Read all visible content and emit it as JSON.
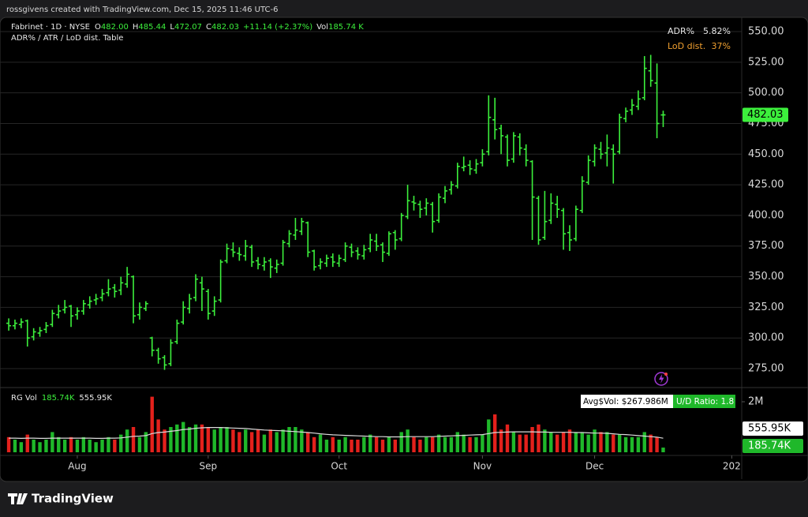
{
  "header": {
    "text": "rossgivens created with TradingView.com, Dec 15, 2025 11:46 UTC-6"
  },
  "footer": {
    "brand": "TradingView"
  },
  "chart_data": [
    {
      "type": "ohlc",
      "title": "Fabrinet · 1D · NYSE",
      "ohlc_legend": [
        {
          "label": "O",
          "value": "482.00"
        },
        {
          "label": "H",
          "value": "485.44"
        },
        {
          "label": "L",
          "value": "472.07"
        },
        {
          "label": "C",
          "value": "482.03"
        }
      ],
      "change": "+11.14 (+2.37%)",
      "volume_legend": {
        "label": "Vol",
        "value": "185.74 K"
      },
      "indicator_title": "ADR% / ATR / LoD dist. Table",
      "table": {
        "rows": [
          [
            "ADR%",
            "5.82%"
          ],
          [
            "LoD dist.",
            "37%"
          ]
        ]
      },
      "color": "#3cf03c",
      "open": [
        312,
        310,
        311,
        314,
        301,
        304,
        307,
        311,
        319,
        323,
        326,
        319,
        322,
        327,
        331,
        333,
        337,
        341,
        339,
        344,
        350,
        319,
        324,
        300,
        290,
        284,
        279,
        297,
        313,
        324,
        333,
        345,
        338,
        322,
        331,
        363,
        372,
        369,
        367,
        374,
        363,
        359,
        363,
        357,
        361,
        377,
        384,
        387,
        394,
        371,
        359,
        361,
        366,
        361,
        364,
        374,
        371,
        367,
        373,
        379,
        376,
        369,
        386,
        381,
        399,
        411,
        409,
        406,
        409,
        396,
        414,
        421,
        424,
        439,
        441,
        437,
        443,
        452,
        478,
        471,
        464,
        446,
        464,
        454,
        444,
        414,
        382,
        396,
        409,
        404,
        386,
        381,
        404,
        427,
        444,
        454,
        451,
        454,
        452,
        479,
        486,
        489,
        496,
        518,
        508,
        482
      ],
      "high": [
        316,
        315,
        316,
        315,
        308,
        309,
        313,
        323,
        327,
        331,
        327,
        325,
        331,
        334,
        336,
        340,
        348,
        344,
        350,
        358,
        351,
        329,
        330,
        301,
        292,
        286,
        299,
        315,
        330,
        336,
        352,
        350,
        340,
        334,
        364,
        377,
        378,
        374,
        380,
        376,
        366,
        366,
        365,
        364,
        380,
        388,
        398,
        398,
        395,
        372,
        365,
        368,
        369,
        368,
        378,
        377,
        374,
        376,
        385,
        385,
        378,
        387,
        388,
        402,
        425,
        416,
        412,
        414,
        411,
        418,
        424,
        428,
        443,
        448,
        445,
        446,
        454,
        498,
        496,
        474,
        466,
        468,
        467,
        458,
        445,
        416,
        420,
        418,
        416,
        406,
        392,
        408,
        432,
        449,
        458,
        460,
        466,
        458,
        483,
        488,
        495,
        502,
        530,
        531,
        524,
        485.44
      ],
      "low": [
        306,
        307,
        308,
        293,
        298,
        301,
        304,
        309,
        316,
        320,
        309,
        315,
        319,
        324,
        327,
        330,
        334,
        333,
        335,
        341,
        312,
        315,
        322,
        285,
        279,
        274,
        277,
        295,
        311,
        320,
        330,
        322,
        315,
        318,
        329,
        361,
        366,
        363,
        363,
        358,
        356,
        355,
        349,
        353,
        359,
        374,
        380,
        384,
        366,
        355,
        356,
        358,
        358,
        358,
        362,
        366,
        364,
        364,
        370,
        371,
        362,
        367,
        372,
        379,
        397,
        404,
        398,
        400,
        386,
        394,
        410,
        417,
        422,
        436,
        433,
        434,
        440,
        449,
        462,
        450,
        440,
        443,
        449,
        440,
        380,
        376,
        380,
        393,
        398,
        372,
        371,
        379,
        402,
        425,
        440,
        446,
        440,
        426,
        450,
        476,
        482,
        486,
        494,
        505,
        463,
        472.07
      ],
      "close": [
        310,
        312,
        313,
        300,
        305,
        306,
        310,
        320,
        322,
        325,
        318,
        322,
        328,
        330,
        332,
        336,
        340,
        338,
        345,
        352,
        318,
        325,
        328,
        290,
        283,
        278,
        296,
        312,
        325,
        332,
        348,
        340,
        320,
        330,
        362,
        373,
        370,
        368,
        375,
        362,
        360,
        362,
        358,
        360,
        378,
        385,
        388,
        395,
        370,
        358,
        362,
        365,
        362,
        365,
        375,
        370,
        368,
        372,
        380,
        375,
        370,
        385,
        380,
        400,
        412,
        410,
        405,
        410,
        395,
        415,
        420,
        425,
        440,
        440,
        438,
        442,
        450,
        480,
        470,
        465,
        445,
        465,
        455,
        445,
        415,
        380,
        395,
        410,
        405,
        385,
        380,
        405,
        428,
        445,
        455,
        450,
        455,
        450,
        480,
        485,
        490,
        495,
        520,
        510,
        475,
        482.03
      ],
      "xlim": [
        -1.4,
        117.6
      ],
      "xticks": [
        {
          "value": 11,
          "label": "Aug"
        },
        {
          "value": 32,
          "label": "Sep"
        },
        {
          "value": 53,
          "label": "Oct"
        },
        {
          "value": 76,
          "label": "Nov"
        },
        {
          "value": 94,
          "label": "Dec"
        },
        {
          "value": 116,
          "label": "202"
        }
      ],
      "ylim": [
        260.2,
        561.6
      ],
      "yticks": [
        {
          "value": 275,
          "label": "275.00"
        },
        {
          "value": 300,
          "label": "300.00"
        },
        {
          "value": 325,
          "label": "325.00"
        },
        {
          "value": 350,
          "label": "350.00"
        },
        {
          "value": 375,
          "label": "375.00"
        },
        {
          "value": 400,
          "label": "400.00"
        },
        {
          "value": 425,
          "label": "425.00"
        },
        {
          "value": 450,
          "label": "450.00"
        },
        {
          "value": 475,
          "label": "475.00"
        },
        {
          "value": 500,
          "label": "500.00"
        },
        {
          "value": 525,
          "label": "525.00"
        },
        {
          "value": 550,
          "label": "550.00"
        }
      ],
      "grid": true
    },
    {
      "type": "volume",
      "title": "RG Vol",
      "volume_label": "185.74K",
      "ma_label": "555.95K",
      "annotation": {
        "avg": "Avg$Vol: $267.986M",
        "ratio": "U/D Ratio: 1.8"
      },
      "up_color": "#1fb82a",
      "down_color": "#e3211c",
      "ma_color": "#dcdcdc",
      "values": [
        0.6,
        0.5,
        0.4,
        0.7,
        0.5,
        0.4,
        0.5,
        0.8,
        0.6,
        0.5,
        0.6,
        0.5,
        0.6,
        0.5,
        0.4,
        0.5,
        0.6,
        0.5,
        0.7,
        0.9,
        1.0,
        0.6,
        0.8,
        2.2,
        1.3,
        0.9,
        1.0,
        1.1,
        1.2,
        1.0,
        1.1,
        1.1,
        1.0,
        0.9,
        1.0,
        1.0,
        0.9,
        0.8,
        0.9,
        0.8,
        0.9,
        0.7,
        0.9,
        0.8,
        0.9,
        1.0,
        1.0,
        0.9,
        0.8,
        0.6,
        0.7,
        0.5,
        0.6,
        0.5,
        0.6,
        0.5,
        0.5,
        0.6,
        0.7,
        0.6,
        0.5,
        0.6,
        0.5,
        0.8,
        0.9,
        0.6,
        0.5,
        0.6,
        0.6,
        0.7,
        0.6,
        0.6,
        0.8,
        0.7,
        0.6,
        0.6,
        0.7,
        1.3,
        1.5,
        0.9,
        1.1,
        0.8,
        0.7,
        0.7,
        1.0,
        1.1,
        0.9,
        0.8,
        0.7,
        0.8,
        0.9,
        0.8,
        0.8,
        0.7,
        0.9,
        0.8,
        0.8,
        0.7,
        0.7,
        0.6,
        0.6,
        0.6,
        0.8,
        0.7,
        0.6,
        0.18574
      ],
      "ma_values": [
        0.56,
        0.56,
        0.55,
        0.56,
        0.56,
        0.55,
        0.55,
        0.56,
        0.56,
        0.56,
        0.56,
        0.56,
        0.56,
        0.56,
        0.55,
        0.55,
        0.56,
        0.56,
        0.57,
        0.6,
        0.63,
        0.64,
        0.66,
        0.74,
        0.78,
        0.8,
        0.83,
        0.86,
        0.9,
        0.92,
        0.95,
        0.97,
        0.98,
        0.98,
        0.98,
        0.97,
        0.96,
        0.95,
        0.94,
        0.92,
        0.9,
        0.88,
        0.87,
        0.86,
        0.85,
        0.83,
        0.82,
        0.8,
        0.78,
        0.76,
        0.73,
        0.71,
        0.69,
        0.68,
        0.67,
        0.66,
        0.65,
        0.64,
        0.63,
        0.62,
        0.62,
        0.61,
        0.61,
        0.61,
        0.62,
        0.62,
        0.62,
        0.62,
        0.62,
        0.63,
        0.64,
        0.65,
        0.66,
        0.67,
        0.68,
        0.69,
        0.7,
        0.74,
        0.78,
        0.79,
        0.8,
        0.81,
        0.81,
        0.81,
        0.81,
        0.8,
        0.8,
        0.79,
        0.79,
        0.79,
        0.79,
        0.78,
        0.78,
        0.77,
        0.76,
        0.76,
        0.75,
        0.73,
        0.71,
        0.7,
        0.68,
        0.66,
        0.64,
        0.62,
        0.6,
        0.55595
      ],
      "ylim": [
        0,
        2.5
      ],
      "yticks": [
        {
          "value": 2,
          "label": "2M"
        }
      ]
    }
  ]
}
